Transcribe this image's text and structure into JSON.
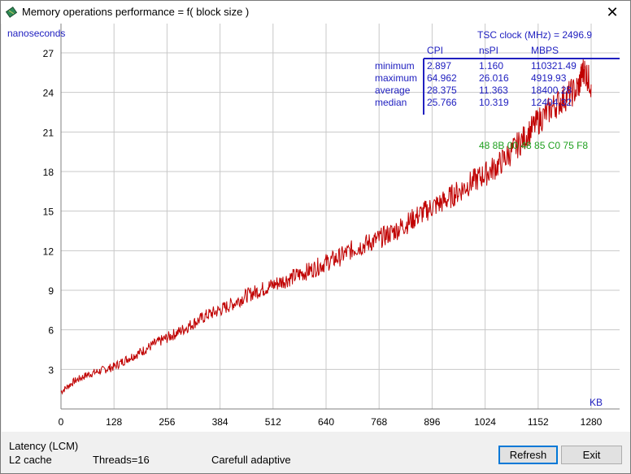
{
  "window": {
    "title": "Memory operations performance = f( block size )",
    "close_glyph": "✕"
  },
  "chart_data": {
    "type": "line",
    "ylabel": "nanoseconds",
    "xlabel": "KB",
    "xlim": [
      0,
      1350
    ],
    "ylim": [
      0,
      29
    ],
    "x_ticks": [
      "0",
      "128",
      "256",
      "384",
      "512",
      "640",
      "768",
      "896",
      "1024",
      "1152",
      "1280"
    ],
    "y_ticks": [
      "3",
      "6",
      "9",
      "12",
      "15",
      "18",
      "21",
      "24",
      "27"
    ],
    "grid": true,
    "series": [
      {
        "color": "#c00000",
        "x": [
          0,
          32,
          64,
          96,
          128,
          160,
          192,
          224,
          256,
          288,
          320,
          352,
          384,
          416,
          448,
          480,
          512,
          544,
          576,
          608,
          640,
          672,
          704,
          736,
          768,
          800,
          832,
          864,
          896,
          928,
          960,
          992,
          1024,
          1056,
          1088,
          1120,
          1152,
          1184,
          1216,
          1248,
          1262,
          1280
        ],
        "values": [
          1.3,
          2.1,
          2.6,
          2.9,
          3.2,
          3.8,
          4.3,
          4.9,
          5.4,
          5.9,
          6.5,
          7.1,
          7.5,
          8.0,
          8.6,
          9.0,
          9.4,
          9.8,
          10.2,
          10.6,
          11.1,
          11.5,
          12.1,
          12.5,
          12.9,
          13.4,
          14.0,
          14.7,
          15.3,
          15.8,
          16.5,
          17.2,
          17.8,
          18.5,
          19.5,
          20.6,
          21.8,
          22.8,
          23.6,
          24.3,
          25.8,
          24.6
        ]
      }
    ]
  },
  "stats": {
    "tsc_label": "TSC clock (MHz)  = 2496.9",
    "columns": [
      "CPI",
      "nsPI",
      "MBPS"
    ],
    "rows": [
      {
        "label": "minimum",
        "cpi": "2.897",
        "nspi": "1.160",
        "mbps": "110321.49"
      },
      {
        "label": "maximum",
        "cpi": "64.962",
        "nspi": "26.016",
        "mbps": "4919.93"
      },
      {
        "label": "average",
        "cpi": "28.375",
        "nspi": "11.363",
        "mbps": "18400.28"
      },
      {
        "label": "median",
        "cpi": "25.766",
        "nspi": "10.319",
        "mbps": "12404.32"
      }
    ],
    "hex_bytes": "48  8B  00  48  85  C0  75  F8"
  },
  "status": {
    "line1": "Latency (LCM)",
    "line2_a": "L2 cache",
    "line2_b": "Threads=16",
    "line2_c": "Carefull adaptive"
  },
  "buttons": {
    "refresh": "Refresh",
    "exit": "Exit"
  },
  "colors": {
    "accent": "#2020c0",
    "series": "#c00000",
    "hex": "#20a020",
    "grid": "#c8c8c8"
  },
  "icons": {
    "app": "memory-chip-icon",
    "close": "close-icon"
  }
}
